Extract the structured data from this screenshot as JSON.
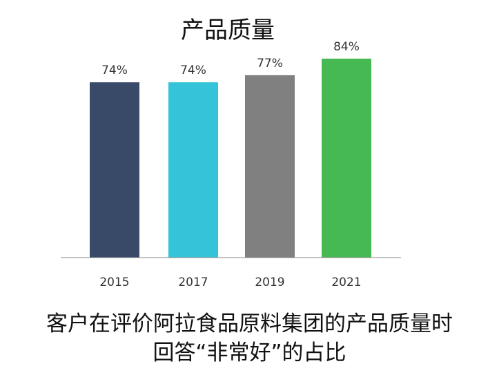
{
  "chart_data": {
    "type": "bar",
    "title": "产品质量",
    "categories": [
      "2015",
      "2017",
      "2019",
      "2021"
    ],
    "values": [
      74,
      74,
      77,
      84
    ],
    "value_labels": [
      "74%",
      "74%",
      "77%",
      "84%"
    ],
    "colors": [
      "#384a67",
      "#35c3d9",
      "#808080",
      "#47b953"
    ],
    "ylim": [
      0,
      100
    ],
    "grid": false
  },
  "caption": {
    "line1": "客户在评价阿拉食品原料集团的产品质量时",
    "line2": "回答“非常好”的占比"
  }
}
